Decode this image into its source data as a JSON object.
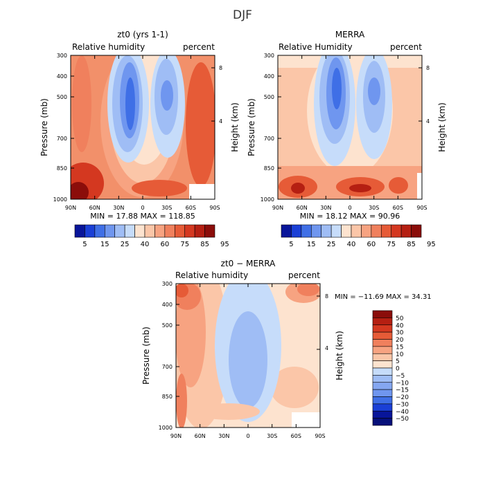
{
  "figure_title": "DJF",
  "chart_data": [
    {
      "type": "heatmap",
      "title": "zt0 (yrs 1-1)",
      "subtitle_left": "Relative humidity",
      "subtitle_right": "percent",
      "ylabel": "Pressure (mb)",
      "ylabel_right": "Height (km)",
      "x_ticks": [
        "90N",
        "60N",
        "30N",
        "0",
        "30S",
        "60S",
        "90S"
      ],
      "y_ticks": [
        "300",
        "400",
        "500",
        "700",
        "850",
        "1000"
      ],
      "y_ticks_right": [
        "8",
        "4"
      ],
      "stats": "MIN = 17.88   MAX = 118.85",
      "colorbar_labels": [
        "5",
        "15",
        "25",
        "40",
        "60",
        "75",
        "85",
        "95"
      ],
      "colorbar_colors": [
        "#08159a",
        "#1a3fd6",
        "#3f6fe6",
        "#6f96ef",
        "#9fbdf5",
        "#c6dcfa",
        "#fde3cf",
        "#fbc6a8",
        "#f7a381",
        "#f0805d",
        "#e65b37",
        "#d43820",
        "#b51f12",
        "#8b0d0a"
      ]
    },
    {
      "type": "heatmap",
      "title": "MERRA",
      "subtitle_left": "Relative Humidity",
      "subtitle_right": "percent",
      "ylabel": "Pressure (mb)",
      "ylabel_right": "Height (km)",
      "x_ticks": [
        "90N",
        "60N",
        "30N",
        "0",
        "30S",
        "60S",
        "90S"
      ],
      "y_ticks": [
        "300",
        "400",
        "500",
        "700",
        "850",
        "1000"
      ],
      "y_ticks_right": [
        "8",
        "4"
      ],
      "stats": "MIN = 18.12   MAX = 90.96",
      "colorbar_labels": [
        "5",
        "15",
        "25",
        "40",
        "60",
        "75",
        "85",
        "95"
      ],
      "colorbar_colors": [
        "#08159a",
        "#1a3fd6",
        "#3f6fe6",
        "#6f96ef",
        "#9fbdf5",
        "#c6dcfa",
        "#fde3cf",
        "#fbc6a8",
        "#f7a381",
        "#f0805d",
        "#e65b37",
        "#d43820",
        "#b51f12",
        "#8b0d0a"
      ]
    },
    {
      "type": "heatmap",
      "title": "zt0 − MERRA",
      "subtitle_left": "Relative humidity",
      "subtitle_right": "percent",
      "ylabel": "Pressure (mb)",
      "ylabel_right": "Height (km)",
      "x_ticks": [
        "90N",
        "60N",
        "30N",
        "0",
        "30S",
        "60S",
        "90S"
      ],
      "y_ticks": [
        "300",
        "400",
        "500",
        "700",
        "850",
        "1000"
      ],
      "y_ticks_right": [
        "8",
        "4"
      ],
      "stats": "MIN = −11.69   MAX =  34.31",
      "colorbar_labels": [
        "50",
        "40",
        "30",
        "20",
        "15",
        "10",
        "5",
        "0",
        "−5",
        "−10",
        "−15",
        "−20",
        "−30",
        "−40",
        "−50"
      ],
      "colorbar_colors": [
        "#8b0d0a",
        "#b51f12",
        "#d43820",
        "#e65b37",
        "#f0805d",
        "#f7a381",
        "#fbc6a8",
        "#fde3cf",
        "#c6dcfa",
        "#9fbdf5",
        "#85a7f1",
        "#6f96ef",
        "#3f6fe6",
        "#1a3fd6",
        "#08159a",
        "#06107a"
      ]
    }
  ]
}
